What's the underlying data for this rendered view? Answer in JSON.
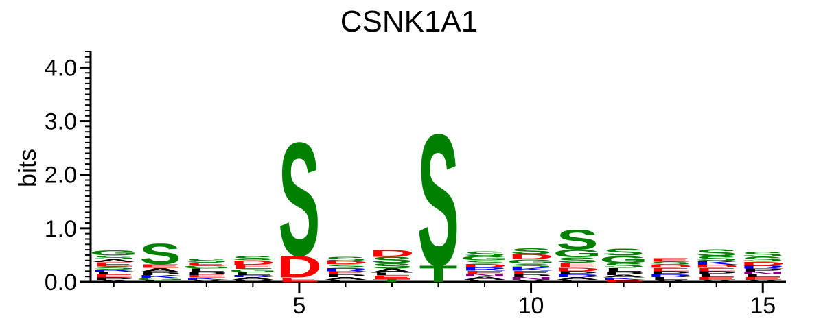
{
  "chart_data": {
    "type": "sequence-logo",
    "title": "CSNK1A1",
    "xlabel": "",
    "ylabel": "bits",
    "xlim": [
      0.5,
      15.5
    ],
    "ylim": [
      0,
      4.3
    ],
    "x_ticks": [
      5,
      10,
      15
    ],
    "y_ticks": [
      0.0,
      1.0,
      2.0,
      3.0,
      4.0
    ],
    "y_tick_labels": [
      "0.0",
      "1.0",
      "2.0",
      "3.0",
      "4.0"
    ],
    "x_tick_labels": [
      "5",
      "10",
      "15"
    ],
    "colors": {
      "S": "#008000",
      "T": "#008000",
      "G": "#008000",
      "Y": "#008000",
      "C": "#008000",
      "D": "#ff0000",
      "E": "#ff0000",
      "K": "#0000ff",
      "R": "#0000ff",
      "H": "#0000ff",
      "N": "#800080",
      "Q": "#800080",
      "A": "#000000",
      "V": "#000000",
      "L": "#000000",
      "I": "#000000",
      "P": "#000000",
      "F": "#000000",
      "M": "#000000",
      "W": "#000000"
    },
    "positions": [
      {
        "pos": 1,
        "letters": [
          [
            "A",
            0.03
          ],
          [
            "P",
            0.05
          ],
          [
            "E",
            0.06
          ],
          [
            "L",
            0.05
          ],
          [
            "R",
            0.04
          ],
          [
            "S",
            0.06
          ],
          [
            "E",
            0.08
          ],
          [
            "A",
            0.05
          ],
          [
            "S",
            0.07
          ],
          [
            "G",
            0.1
          ]
        ]
      },
      {
        "pos": 2,
        "letters": [
          [
            "L",
            0.03
          ],
          [
            "G",
            0.04
          ],
          [
            "K",
            0.06
          ],
          [
            "P",
            0.05
          ],
          [
            "A",
            0.08
          ],
          [
            "E",
            0.07
          ],
          [
            "S",
            0.4
          ]
        ]
      },
      {
        "pos": 3,
        "letters": [
          [
            "A",
            0.04
          ],
          [
            "K",
            0.04
          ],
          [
            "E",
            0.05
          ],
          [
            "P",
            0.06
          ],
          [
            "L",
            0.06
          ],
          [
            "G",
            0.06
          ],
          [
            "E",
            0.05
          ],
          [
            "S",
            0.08
          ]
        ]
      },
      {
        "pos": 4,
        "letters": [
          [
            "P",
            0.04
          ],
          [
            "A",
            0.05
          ],
          [
            "R",
            0.04
          ],
          [
            "L",
            0.05
          ],
          [
            "G",
            0.06
          ],
          [
            "E",
            0.08
          ],
          [
            "D",
            0.08
          ],
          [
            "S",
            0.08
          ]
        ]
      },
      {
        "pos": 5,
        "letters": [
          [
            "E",
            0.08
          ],
          [
            "D",
            0.42
          ],
          [
            "S",
            2.2
          ]
        ]
      },
      {
        "pos": 6,
        "letters": [
          [
            "L",
            0.04
          ],
          [
            "A",
            0.05
          ],
          [
            "P",
            0.05
          ],
          [
            "E",
            0.06
          ],
          [
            "R",
            0.06
          ],
          [
            "S",
            0.07
          ],
          [
            "D",
            0.06
          ],
          [
            "S",
            0.08
          ]
        ]
      },
      {
        "pos": 7,
        "letters": [
          [
            "T",
            0.05
          ],
          [
            "E",
            0.07
          ],
          [
            "L",
            0.05
          ],
          [
            "A",
            0.08
          ],
          [
            "S",
            0.1
          ],
          [
            "S",
            0.12
          ],
          [
            "D",
            0.14
          ]
        ]
      },
      {
        "pos": 8,
        "letters": [
          [
            "T",
            0.32
          ],
          [
            "S",
            2.55
          ]
        ]
      },
      {
        "pos": 9,
        "letters": [
          [
            "L",
            0.04
          ],
          [
            "A",
            0.06
          ],
          [
            "N",
            0.05
          ],
          [
            "E",
            0.06
          ],
          [
            "R",
            0.06
          ],
          [
            "D",
            0.07
          ],
          [
            "S",
            0.06
          ],
          [
            "G",
            0.08
          ],
          [
            "S",
            0.09
          ]
        ]
      },
      {
        "pos": 10,
        "letters": [
          [
            "A",
            0.04
          ],
          [
            "N",
            0.05
          ],
          [
            "P",
            0.05
          ],
          [
            "E",
            0.07
          ],
          [
            "K",
            0.06
          ],
          [
            "S",
            0.07
          ],
          [
            "G",
            0.08
          ],
          [
            "D",
            0.1
          ],
          [
            "S",
            0.11
          ]
        ]
      },
      {
        "pos": 11,
        "letters": [
          [
            "L",
            0.04
          ],
          [
            "A",
            0.05
          ],
          [
            "R",
            0.05
          ],
          [
            "P",
            0.06
          ],
          [
            "D",
            0.07
          ],
          [
            "E",
            0.09
          ],
          [
            "S",
            0.1
          ],
          [
            "G",
            0.15
          ],
          [
            "S",
            0.38
          ]
        ]
      },
      {
        "pos": 12,
        "letters": [
          [
            "E",
            0.04
          ],
          [
            "K",
            0.04
          ],
          [
            "A",
            0.05
          ],
          [
            "P",
            0.06
          ],
          [
            "L",
            0.07
          ],
          [
            "S",
            0.09
          ],
          [
            "G",
            0.14
          ],
          [
            "S",
            0.14
          ]
        ]
      },
      {
        "pos": 13,
        "letters": [
          [
            "A",
            0.04
          ],
          [
            "L",
            0.05
          ],
          [
            "R",
            0.05
          ],
          [
            "P",
            0.06
          ],
          [
            "E",
            0.06
          ],
          [
            "D",
            0.06
          ],
          [
            "S",
            0.06
          ],
          [
            "E",
            0.07
          ]
        ]
      },
      {
        "pos": 14,
        "letters": [
          [
            "A",
            0.04
          ],
          [
            "E",
            0.05
          ],
          [
            "L",
            0.05
          ],
          [
            "P",
            0.06
          ],
          [
            "E",
            0.06
          ],
          [
            "D",
            0.06
          ],
          [
            "K",
            0.07
          ],
          [
            "S",
            0.09
          ],
          [
            "S",
            0.14
          ]
        ]
      },
      {
        "pos": 15,
        "letters": [
          [
            "A",
            0.04
          ],
          [
            "E",
            0.05
          ],
          [
            "L",
            0.05
          ],
          [
            "N",
            0.05
          ],
          [
            "P",
            0.06
          ],
          [
            "R",
            0.06
          ],
          [
            "D",
            0.07
          ],
          [
            "S",
            0.09
          ],
          [
            "S",
            0.1
          ]
        ]
      }
    ]
  }
}
